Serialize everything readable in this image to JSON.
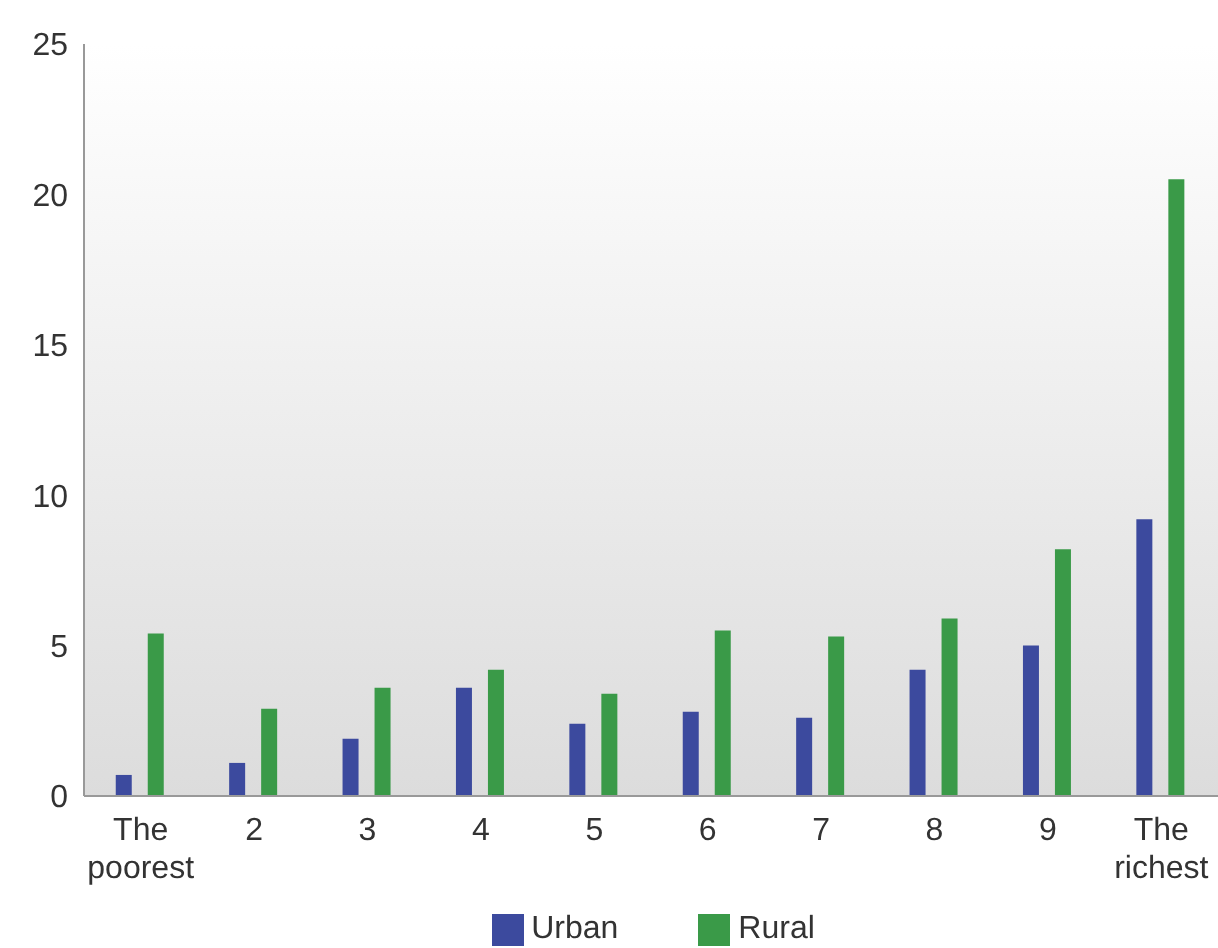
{
  "chart_data": {
    "type": "bar",
    "categories": [
      "The poorest",
      "2",
      "3",
      "4",
      "5",
      "6",
      "7",
      "8",
      "9",
      "The richest"
    ],
    "series": [
      {
        "name": "Urban",
        "color": "#3c4a9e",
        "values": [
          0.7,
          1.1,
          1.9,
          3.6,
          2.4,
          2.8,
          2.6,
          4.2,
          5.0,
          9.2
        ]
      },
      {
        "name": "Rural",
        "color": "#3a9a48",
        "values": [
          5.4,
          2.9,
          3.6,
          4.2,
          3.4,
          5.5,
          5.3,
          5.9,
          8.2,
          20.5
        ]
      }
    ],
    "ylim": [
      0,
      25
    ],
    "yticks": [
      0,
      5,
      10,
      15,
      20,
      25
    ],
    "grid": false,
    "legend": "bottom"
  }
}
